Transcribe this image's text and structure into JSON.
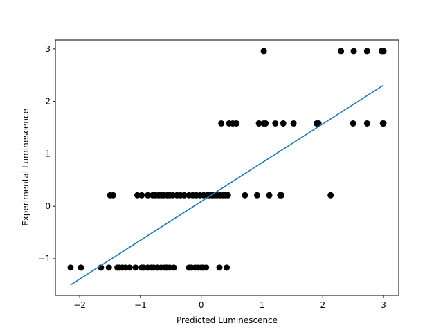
{
  "chart_data": {
    "type": "scatter",
    "title": "",
    "xlabel": "Predicted Luminescence",
    "ylabel": "Experimental Luminescence",
    "xlim": [
      -2.4,
      3.25
    ],
    "ylim": [
      -1.7,
      3.17
    ],
    "x_ticks": [
      -2,
      -1,
      0,
      1,
      2,
      3
    ],
    "x_tick_labels": [
      "−2",
      "−1",
      "0",
      "1",
      "2",
      "3"
    ],
    "y_ticks": [
      -1,
      0,
      1,
      2,
      3
    ],
    "y_tick_labels": [
      "−1",
      "0",
      "1",
      "2",
      "3"
    ],
    "grid": false,
    "points_color": "#000000",
    "line_color": "#1f77b4",
    "series": [
      {
        "kind": "points",
        "x": [
          -2.15,
          -1.98,
          -1.65,
          -1.52,
          -1.38,
          -1.35,
          -1.3,
          -1.25,
          -1.18,
          -1.08,
          -0.98,
          -0.95,
          -0.88,
          -0.82,
          -0.78,
          -0.72,
          -0.66,
          -0.6,
          -0.57,
          -0.52,
          -0.45,
          -0.2,
          -0.16,
          -0.1,
          -0.05,
          0.0,
          0.03,
          0.08,
          0.3,
          0.42,
          -1.5,
          -1.45,
          -1.05,
          -0.98,
          -0.88,
          -0.8,
          -0.75,
          -0.7,
          -0.66,
          -0.62,
          -0.56,
          -0.52,
          -0.47,
          -0.4,
          -0.34,
          -0.28,
          -0.2,
          -0.14,
          -0.08,
          -0.02,
          0.04,
          0.1,
          0.14,
          0.18,
          0.22,
          0.26,
          0.31,
          0.36,
          0.4,
          0.44,
          0.72,
          0.92,
          1.12,
          1.3,
          1.32,
          2.13,
          0.33,
          0.46,
          0.52,
          0.58,
          0.95,
          1.03,
          1.06,
          1.22,
          1.35,
          1.52,
          1.9,
          1.93,
          2.5,
          2.73,
          2.99,
          3.0,
          1.03,
          2.3,
          2.51,
          2.73,
          2.97,
          3.0
        ],
        "y": [
          -1.17,
          -1.17,
          -1.17,
          -1.17,
          -1.17,
          -1.17,
          -1.17,
          -1.17,
          -1.17,
          -1.17,
          -1.17,
          -1.17,
          -1.17,
          -1.17,
          -1.17,
          -1.17,
          -1.17,
          -1.17,
          -1.17,
          -1.17,
          -1.17,
          -1.17,
          -1.17,
          -1.17,
          -1.17,
          -1.17,
          -1.17,
          -1.17,
          -1.17,
          -1.17,
          0.21,
          0.21,
          0.21,
          0.21,
          0.21,
          0.21,
          0.21,
          0.21,
          0.21,
          0.21,
          0.21,
          0.21,
          0.21,
          0.21,
          0.21,
          0.21,
          0.21,
          0.21,
          0.21,
          0.21,
          0.21,
          0.21,
          0.21,
          0.21,
          0.21,
          0.21,
          0.21,
          0.21,
          0.21,
          0.21,
          0.21,
          0.21,
          0.21,
          0.21,
          0.21,
          0.21,
          1.58,
          1.58,
          1.58,
          1.58,
          1.58,
          1.58,
          1.58,
          1.58,
          1.58,
          1.58,
          1.58,
          1.58,
          1.58,
          1.58,
          1.58,
          1.58,
          2.96,
          2.96,
          2.96,
          2.96,
          2.96,
          2.96
        ]
      },
      {
        "kind": "line",
        "x": [
          -2.15,
          3.0
        ],
        "y": [
          -1.5,
          2.31
        ]
      }
    ]
  }
}
